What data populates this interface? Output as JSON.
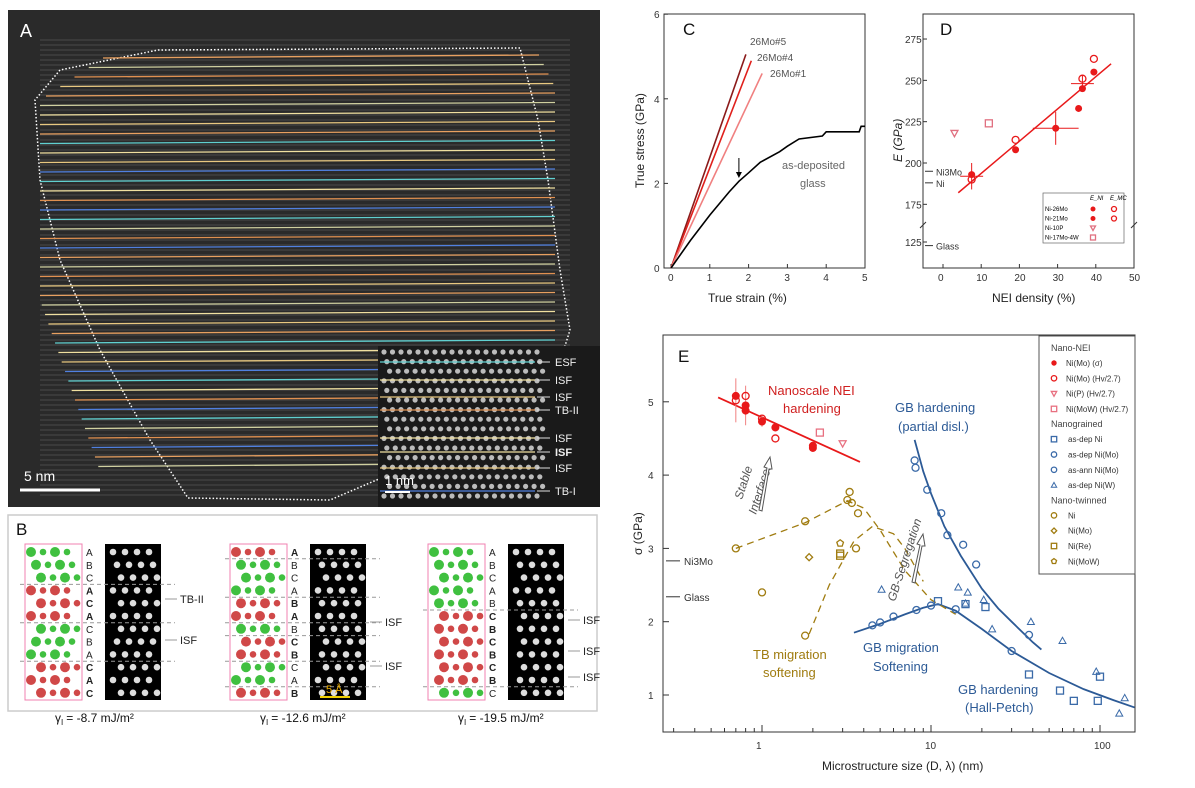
{
  "panelA": {
    "label": "A",
    "scale": "5 nm",
    "inset_scale": "1 nm",
    "inset_labels": [
      "ESF",
      "ISF",
      "ISF",
      "TB-II",
      "ISF",
      "ISF",
      "ISF",
      "TB-I"
    ]
  },
  "panelB": {
    "label": "B",
    "subpanels": [
      {
        "stack": [
          "A",
          "B",
          "C",
          "A",
          "C",
          "A",
          "C",
          "B",
          "A",
          "C",
          "A",
          "C"
        ],
        "bold": [
          3,
          4,
          5,
          9,
          10,
          11
        ],
        "labels": [
          "TB-II",
          "ISF"
        ],
        "gamma": "= -8.7 mJ/m²"
      },
      {
        "stack": [
          "A",
          "B",
          "C",
          "A",
          "B",
          "A",
          "B",
          "C",
          "B",
          "C",
          "A",
          "B"
        ],
        "bold": [
          0,
          4,
          5,
          7,
          8,
          11
        ],
        "labels": [
          "ISF",
          "ISF"
        ],
        "gamma": "= -12.6 mJ/m²",
        "scale": "5 Å"
      },
      {
        "stack": [
          "A",
          "B",
          "C",
          "A",
          "B",
          "C",
          "B",
          "C",
          "B",
          "C",
          "B",
          "C"
        ],
        "bold": [
          5,
          6,
          7,
          8,
          9,
          10
        ],
        "labels": [
          "ISF",
          "ISF",
          "ISF"
        ],
        "gamma": "= -19.5 mJ/m²"
      }
    ],
    "gamma_symbol": "γ",
    "gamma_sub": "I"
  },
  "chart_data": [
    {
      "panel": "C",
      "type": "line",
      "xlabel": "True strain (%)",
      "ylabel": "True stress (GPa)",
      "xlim": [
        0,
        5
      ],
      "ylim": [
        0,
        6
      ],
      "xticks": [
        0,
        1,
        2,
        3,
        4,
        5
      ],
      "yticks": [
        0,
        2,
        4,
        6
      ],
      "series": [
        {
          "name": "26Mo#5",
          "color": "#8b1a1a",
          "x": [
            0,
            1.93
          ],
          "y": [
            0,
            5.05
          ]
        },
        {
          "name": "26Mo#4",
          "color": "#e0201c",
          "x": [
            0,
            2.07
          ],
          "y": [
            0,
            4.9
          ]
        },
        {
          "name": "26Mo#1",
          "color": "#f08080",
          "x": [
            0,
            2.35
          ],
          "y": [
            0,
            4.6
          ]
        },
        {
          "name": "as-deposited glass",
          "color": "#000000",
          "x": [
            0,
            0.5,
            1,
            1.5,
            1.75,
            2,
            2.3,
            2.8,
            3,
            3.3,
            3.9,
            4,
            4.85,
            4.9,
            5
          ],
          "y": [
            0,
            0.65,
            1.25,
            1.8,
            2.05,
            2.25,
            2.5,
            2.75,
            2.88,
            3.05,
            3.12,
            3.22,
            3.22,
            3.35,
            3.35
          ]
        }
      ],
      "annotations": {
        "glass_line1": "as-deposited",
        "glass_line2": "glass",
        "arrow_x": 1.75
      }
    },
    {
      "panel": "D",
      "type": "scatter",
      "xlabel": "NEI density (%)",
      "ylabel": "E (GPa)",
      "xlim": [
        -5,
        50
      ],
      "ylim": [
        115,
        290
      ],
      "xticks": [
        0,
        10,
        20,
        30,
        40,
        50
      ],
      "yticks": [
        125,
        175,
        200,
        225,
        250,
        275
      ],
      "axis_break": true,
      "legend": {
        "col1": "E_NI",
        "col2": "E_MC",
        "position": "bottom-right",
        "rows": [
          "Ni-26Mo",
          "Ni-21Mo",
          "Ni-10P",
          "Ni-17Mo-4W"
        ]
      },
      "series": [
        {
          "name": "Ni-26Mo / Ni-21Mo E_NI",
          "marker": "filled-circle",
          "color": "#e8191a",
          "x": [
            7.5,
            19,
            29.5,
            35.5,
            36.5,
            39.5
          ],
          "y": [
            193,
            208,
            221,
            233,
            245,
            255
          ]
        },
        {
          "name": "Ni-26Mo / Ni-21Mo E_MC",
          "marker": "open-circle",
          "color": "#e8191a",
          "x": [
            7.5,
            19,
            36.5,
            39.5
          ],
          "y": [
            190,
            214,
            251,
            263
          ]
        },
        {
          "name": "Ni-10P",
          "marker": "triangle-down",
          "color": "#e07080",
          "x": [
            3
          ],
          "y": [
            218
          ]
        },
        {
          "name": "Ni-17Mo-4W",
          "marker": "square",
          "color": "#e07080",
          "x": [
            12
          ],
          "y": [
            224
          ]
        }
      ],
      "fit": {
        "x": [
          4,
          44
        ],
        "y": [
          182,
          260
        ]
      },
      "references": [
        {
          "label": "Ni3Mo",
          "y": 195
        },
        {
          "label": "Ni",
          "y": 188
        },
        {
          "label": "Glass",
          "y": 122
        }
      ]
    },
    {
      "panel": "E",
      "type": "scatter",
      "xlabel": "Microstructure size (D, λ) (nm)",
      "ylabel": "σ (GPa)",
      "xscale": "log",
      "xlim": [
        0.26,
        160
      ],
      "ylim": [
        0.5,
        5.9
      ],
      "xticks": [
        1,
        10,
        100
      ],
      "yticks": [
        1,
        2,
        3,
        4,
        5
      ],
      "legend": {
        "position": "top-right",
        "groups": [
          {
            "title": "Nano-NEI",
            "items": [
              {
                "label": "Ni(Mo) (σ)",
                "marker": "filled-circle",
                "color": "#e8191a"
              },
              {
                "label": "Ni(Mo) (Hv/2.7)",
                "marker": "open-circle",
                "color": "#e8191a"
              },
              {
                "label": "Ni(P) (Hv/2.7)",
                "marker": "triangle-down",
                "color": "#e87080"
              },
              {
                "label": "Ni(MoW) (Hv/2.7)",
                "marker": "square",
                "color": "#e87080"
              }
            ]
          },
          {
            "title": "Nanograined",
            "items": [
              {
                "label": "as-dep Ni",
                "marker": "square",
                "color": "#3a6aa8"
              },
              {
                "label": "as-dep Ni(Mo)",
                "marker": "circle",
                "color": "#3a6aa8"
              },
              {
                "label": "as-ann Ni(Mo)",
                "marker": "circle",
                "color": "#3a6aa8"
              },
              {
                "label": "as-dep Ni(W)",
                "marker": "triangle",
                "color": "#3a6aa8"
              }
            ]
          },
          {
            "title": "Nano-twinned",
            "items": [
              {
                "label": "Ni",
                "marker": "circle",
                "color": "#a07c10"
              },
              {
                "label": "Ni(Mo)",
                "marker": "diamond",
                "color": "#a07c10"
              },
              {
                "label": "Ni(Re)",
                "marker": "square",
                "color": "#a07c10"
              },
              {
                "label": "Ni(MoW)",
                "marker": "pentagon",
                "color": "#a07c10"
              }
            ]
          }
        ]
      },
      "series": [
        {
          "name": "Ni(Mo) (σ)",
          "marker": "filled-circle",
          "color": "#e8191a",
          "x": [
            0.7,
            0.8,
            0.8,
            1,
            1.2,
            2,
            2
          ],
          "y": [
            5.08,
            4.95,
            4.88,
            4.73,
            4.65,
            4.37,
            4.4
          ]
        },
        {
          "name": "Ni(Mo) (Hv/2.7)",
          "marker": "open-circle",
          "color": "#e8191a",
          "x": [
            0.7,
            0.8,
            1,
            1.2
          ],
          "y": [
            5.02,
            5.08,
            4.77,
            4.5
          ]
        },
        {
          "name": "Ni(P) (Hv/2.7)",
          "marker": "triangle-down",
          "color": "#e87080",
          "x": [
            3
          ],
          "y": [
            4.43
          ]
        },
        {
          "name": "Ni(MoW) (Hv/2.7)",
          "marker": "square",
          "color": "#e87080",
          "x": [
            2.2
          ],
          "y": [
            4.58
          ]
        },
        {
          "name": "as-dep Ni",
          "marker": "square",
          "color": "#3a6aa8",
          "x": [
            11,
            16,
            21,
            38,
            58,
            70,
            97,
            100
          ],
          "y": [
            2.28,
            2.24,
            2.2,
            1.28,
            1.06,
            0.92,
            0.92,
            1.25
          ]
        },
        {
          "name": "as-dep Ni(Mo)",
          "marker": "circle",
          "color": "#3a6aa8",
          "x": [
            4.5,
            5,
            6,
            8.2,
            10,
            14,
            30,
            38
          ],
          "y": [
            1.95,
            1.99,
            2.07,
            2.16,
            2.22,
            2.17,
            1.6,
            1.82
          ]
        },
        {
          "name": "as-ann Ni(Mo)",
          "marker": "circle",
          "color": "#3a6aa8",
          "x": [
            8,
            8.1,
            9.5,
            11.5,
            12.5,
            15.5,
            18.5
          ],
          "y": [
            4.2,
            4.1,
            3.8,
            3.48,
            3.18,
            3.05,
            2.78
          ]
        },
        {
          "name": "as-dep Ni(W)",
          "marker": "triangle",
          "color": "#3a6aa8",
          "x": [
            5.1,
            14.5,
            16.5,
            16,
            20.5,
            23,
            39,
            60,
            95,
            130,
            140
          ],
          "y": [
            2.44,
            2.47,
            2.4,
            2.25,
            2.3,
            1.9,
            2.0,
            1.74,
            1.32,
            0.75,
            0.96
          ]
        },
        {
          "name": "Ni",
          "marker": "circle",
          "color": "#a07c10",
          "x": [
            0.7,
            1,
            1.8,
            1.8,
            3.3,
            3.2,
            3.4,
            3.7,
            3.6
          ],
          "y": [
            3.0,
            2.4,
            3.37,
            1.81,
            3.77,
            3.66,
            3.62,
            3.48,
            3.0
          ]
        },
        {
          "name": "Ni(Mo)",
          "marker": "diamond",
          "color": "#a07c10",
          "x": [
            1.9
          ],
          "y": [
            2.88
          ]
        },
        {
          "name": "Ni(Re)",
          "marker": "square",
          "color": "#a07c10",
          "x": [
            2.9,
            2.9
          ],
          "y": [
            2.9,
            2.93
          ]
        },
        {
          "name": "Ni(MoW)",
          "marker": "pentagon",
          "color": "#a07c10",
          "x": [
            2.9
          ],
          "y": [
            3.07
          ]
        }
      ],
      "curves": [
        {
          "color": "#e8191a",
          "dash": false,
          "x": [
            0.55,
            3.8
          ],
          "y": [
            5.06,
            4.18
          ]
        },
        {
          "color": "#2c5a96",
          "dash": false,
          "x": [
            8,
            9,
            10,
            12,
            15,
            20,
            25,
            30,
            40,
            45
          ],
          "y": [
            4.48,
            4.05,
            3.75,
            3.3,
            2.9,
            2.45,
            2.18,
            2.0,
            1.72,
            1.62
          ]
        },
        {
          "color": "#2c5a96",
          "dash": false,
          "x": [
            3.5,
            5,
            7,
            9,
            11,
            14,
            20,
            30,
            50,
            80,
            120,
            160
          ],
          "y": [
            1.85,
            1.97,
            2.1,
            2.19,
            2.24,
            2.15,
            1.9,
            1.6,
            1.3,
            1.08,
            0.93,
            0.83
          ]
        },
        {
          "color": "#a07c10",
          "dash": true,
          "x": [
            0.7,
            1.8,
            3.2,
            4,
            5,
            7,
            10,
            14
          ],
          "y": [
            3.0,
            3.35,
            3.65,
            3.55,
            3.25,
            2.7,
            2.3,
            2.1
          ]
        },
        {
          "color": "#a07c10",
          "dash": true,
          "x": [
            1.9,
            2.5,
            3.5,
            4.5,
            6,
            7,
            9
          ],
          "y": [
            1.83,
            2.5,
            3.1,
            3.3,
            3.2,
            3.0,
            2.55
          ]
        }
      ],
      "annotations": {
        "nei1": "Nanoscale NEI",
        "nei2": "hardening",
        "gbp1": "GB hardening",
        "gbp2": "(partial disl.)",
        "tb1": "TB migration",
        "tb2": "softening",
        "gbm1": "GB migration",
        "gbm2": "Softening",
        "hp1": "GB hardening",
        "hp2": "(Hall-Petch)",
        "stable1": "Stable",
        "stable2": "Interfaces",
        "seg": "GB-Segregation"
      },
      "references": [
        {
          "label": "Ni3Mo",
          "y": 2.83
        },
        {
          "label": "Glass",
          "y": 2.34
        }
      ]
    }
  ]
}
